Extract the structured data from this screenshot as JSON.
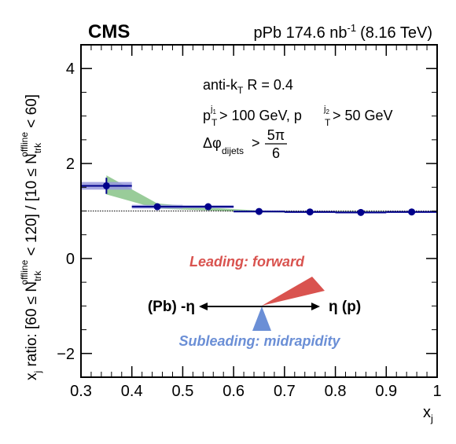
{
  "header": {
    "experiment": "CMS",
    "system": "pPb 174.6 nb",
    "lumi_exp": "-1",
    "energy": "(8.16 TeV)"
  },
  "annotations": {
    "algo_a": "anti-k",
    "algo_sub": "T",
    "algo_b": " R = 0.4",
    "pt_line_a": "p",
    "pt_sub_T": "T",
    "pt_sup_j1": "j",
    "pt_sup_j1_idx": "1",
    "pt_cut1": " > 100 GeV, p",
    "pt_sup_j2": "j",
    "pt_sup_j2_idx": "2",
    "pt_cut2": " > 50 GeV",
    "dphi": "Δφ",
    "dphi_sub": "dijets",
    "dphi_gt": " >",
    "dphi_num": "5π",
    "dphi_den": "6"
  },
  "diagram": {
    "leading_label": "Leading: forward",
    "subleading_label": "Subleading: midrapidity",
    "left_label": "(Pb) -η",
    "right_label": "η (p)",
    "leading_color": "#d9534f",
    "subleading_color": "#6b8fd6"
  },
  "axes": {
    "xlabel": "x",
    "xlabel_sub": "j",
    "ylabel_a": "x",
    "ylabel_sub_j": "j",
    "ylabel_b": " ratio: [60 ≤ N",
    "ylabel_sub1": "trk",
    "ylabel_sup1": "offline",
    "ylabel_c": " < 120] / [10 ≤ N",
    "ylabel_sub2": "trk",
    "ylabel_sup2": "offline",
    "ylabel_d": " < 60]"
  },
  "chart_data": {
    "type": "scatter",
    "xlim": [
      0.3,
      1.0
    ],
    "ylim": [
      -2.5,
      4.5
    ],
    "x_ticks": [
      0.3,
      0.4,
      0.5,
      0.6,
      0.7,
      0.8,
      0.9,
      1.0
    ],
    "x_tick_labels": [
      "0.3",
      "0.4",
      "0.5",
      "0.6",
      "0.7",
      "0.8",
      "0.9",
      "1"
    ],
    "y_ticks": [
      -2,
      0,
      2,
      4
    ],
    "y_tick_labels": [
      "−2",
      "0",
      "2",
      "4"
    ],
    "reference_line_y": 1.0,
    "series": [
      {
        "x": [
          0.35,
          0.45,
          0.55,
          0.65,
          0.75,
          0.85,
          0.95
        ],
        "x_low": [
          0.3,
          0.4,
          0.5,
          0.6,
          0.7,
          0.8,
          0.9
        ],
        "x_high": [
          0.4,
          0.5,
          0.6,
          0.7,
          0.8,
          0.9,
          1.0
        ],
        "y": [
          1.53,
          1.09,
          1.09,
          0.99,
          0.98,
          0.97,
          0.98
        ],
        "stat_err": [
          0.17,
          0.04,
          0.03,
          0.02,
          0.02,
          0.02,
          0.02
        ],
        "syst_err": [
          0.08,
          0.04,
          0.03,
          0.02,
          0.02,
          0.02,
          0.02
        ],
        "color": "#00008b",
        "syst_color": "#9999dd"
      }
    ],
    "model_band": {
      "x": [
        0.35,
        0.45,
        0.55,
        0.65,
        0.75,
        0.85,
        0.95
      ],
      "y_low": [
        1.35,
        1.05,
        1.01,
        0.97,
        0.96,
        0.96,
        0.96
      ],
      "y_high": [
        1.75,
        1.16,
        1.07,
        1.01,
        1.0,
        1.0,
        1.0
      ],
      "color": "#7fbf7f"
    }
  }
}
